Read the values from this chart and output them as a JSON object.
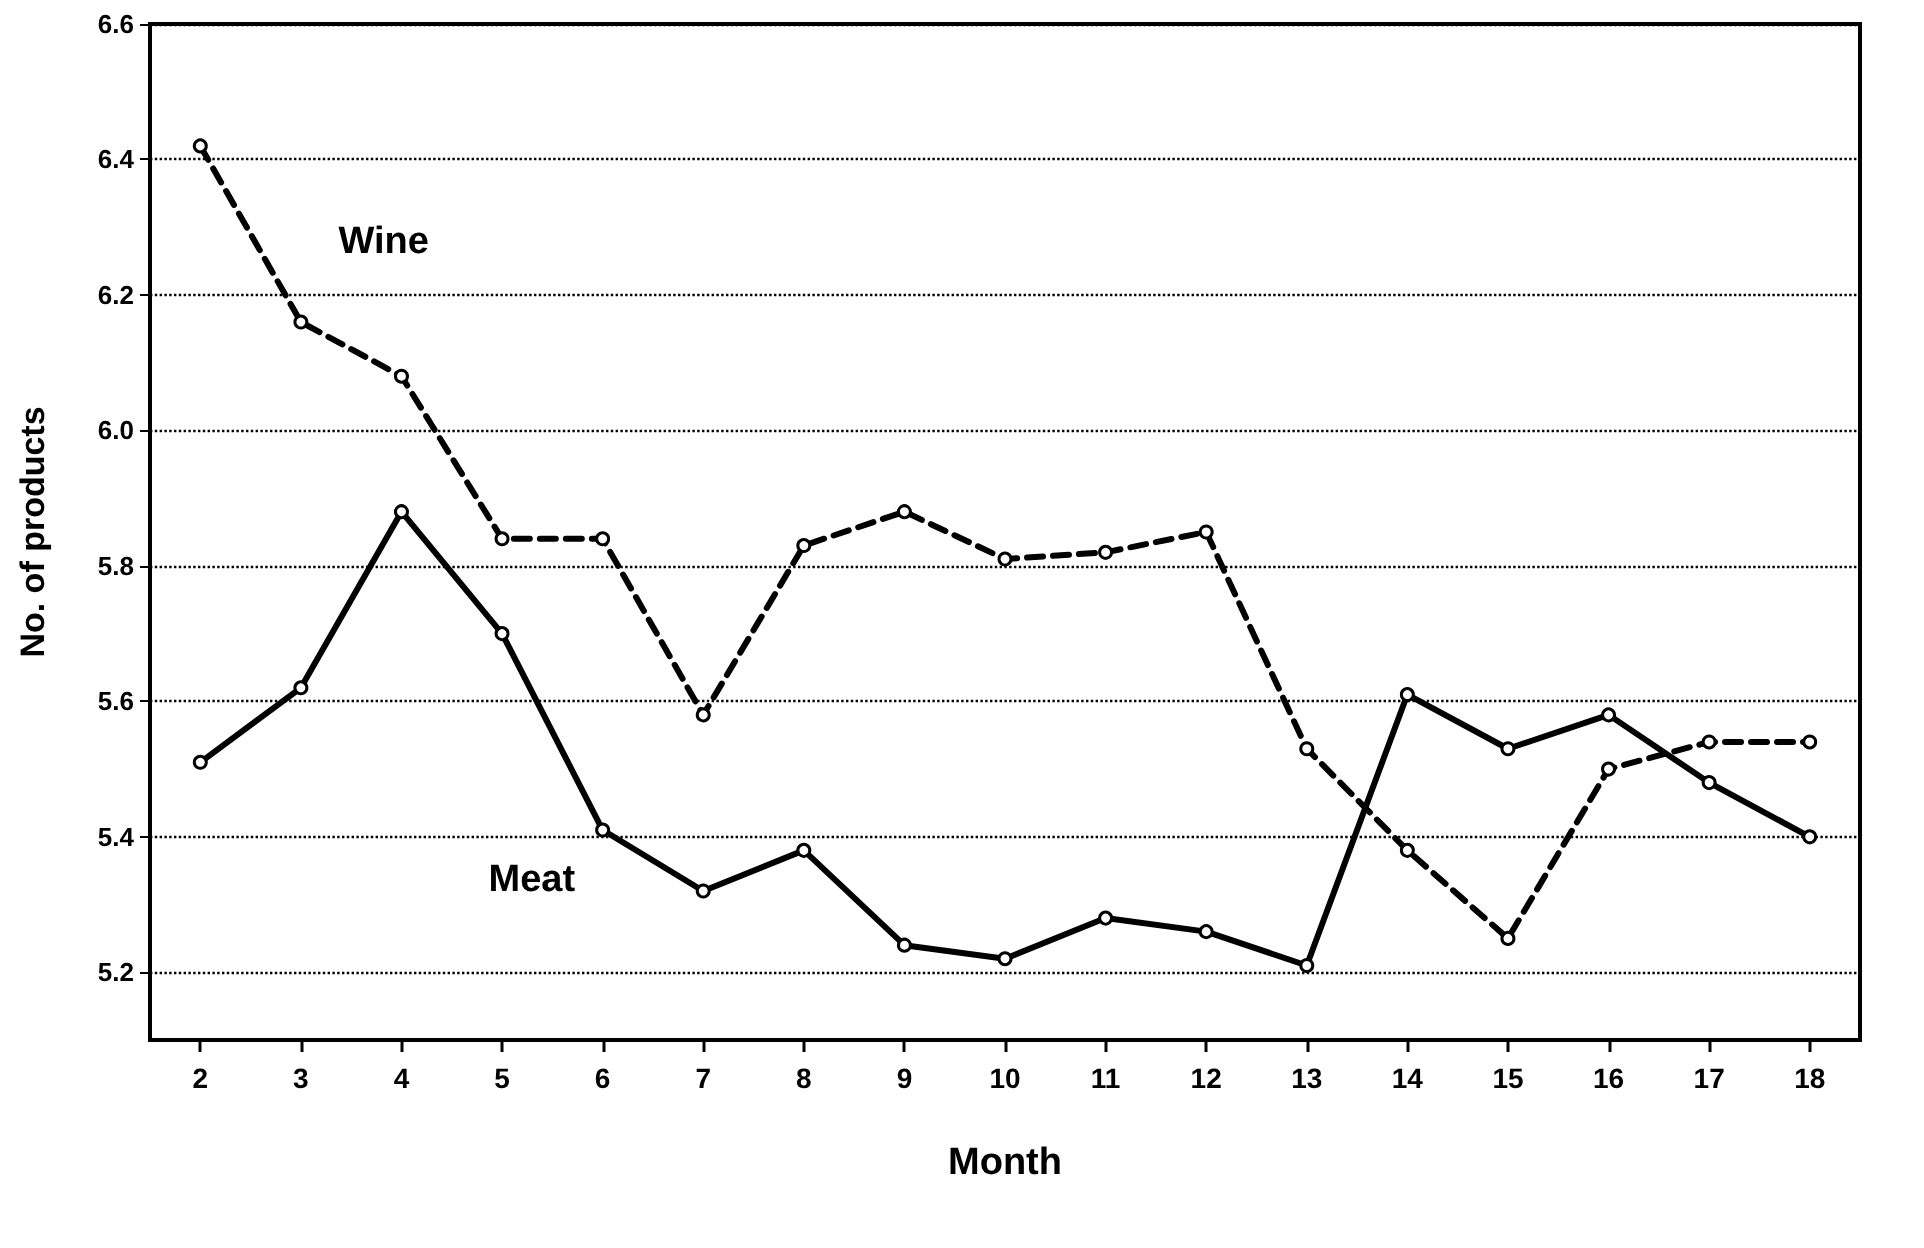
{
  "chart_data": {
    "type": "line",
    "xlabel": "Month",
    "ylabel": "No. of products",
    "categories": [
      "2",
      "3",
      "4",
      "5",
      "6",
      "7",
      "8",
      "9",
      "10",
      "11",
      "12",
      "13",
      "14",
      "15",
      "16",
      "17",
      "18"
    ],
    "series": [
      {
        "name": "Wine",
        "color": "#000000",
        "line_style": "dashed",
        "values": [
          6.42,
          6.16,
          6.08,
          5.84,
          5.84,
          5.58,
          5.83,
          5.88,
          5.81,
          5.82,
          5.85,
          5.53,
          5.38,
          5.25,
          5.5,
          5.54,
          5.54
        ]
      },
      {
        "name": "Meat",
        "color": "#000000",
        "line_style": "solid",
        "values": [
          5.51,
          5.62,
          5.88,
          5.7,
          5.41,
          5.32,
          5.38,
          5.24,
          5.22,
          5.28,
          5.26,
          5.21,
          5.61,
          5.53,
          5.58,
          5.48,
          5.4
        ]
      }
    ],
    "ylim": [
      5.1,
      6.6
    ],
    "yticks": [
      5.2,
      5.4,
      5.6,
      5.8,
      {
        "value": 6.0,
        "label": "6.0"
      },
      6.2,
      6.4,
      6.6
    ],
    "grid": "y",
    "marker": "circle",
    "legend": false
  }
}
